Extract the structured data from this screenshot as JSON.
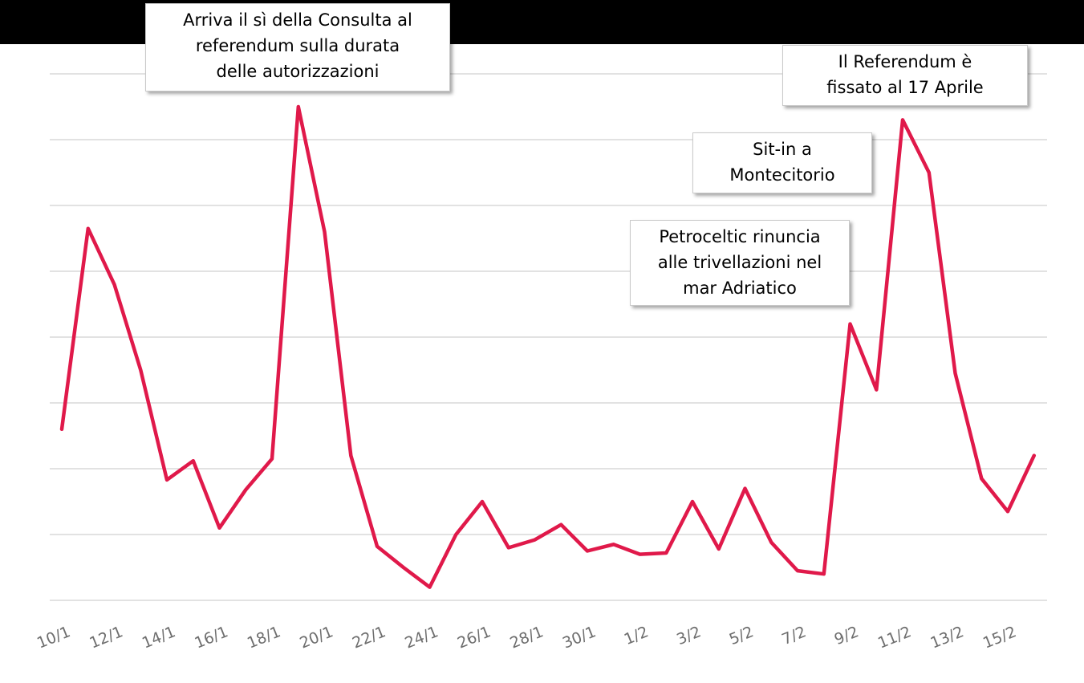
{
  "chart_data": {
    "type": "line",
    "title": "",
    "xlabel": "",
    "ylabel": "",
    "grid": true,
    "line_color": "#e0194a",
    "ylim": [
      0,
      8
    ],
    "x": [
      "10/1",
      "11/1",
      "12/1",
      "13/1",
      "14/1",
      "15/1",
      "16/1",
      "17/1",
      "18/1",
      "19/1",
      "20/1",
      "21/1",
      "22/1",
      "23/1",
      "24/1",
      "25/1",
      "26/1",
      "27/1",
      "28/1",
      "29/1",
      "30/1",
      "31/1",
      "1/2",
      "2/2",
      "3/2",
      "4/2",
      "5/2",
      "6/2",
      "7/2",
      "8/2",
      "9/2",
      "10/2",
      "11/2",
      "12/2",
      "13/2",
      "14/2",
      "15/2",
      "16/2"
    ],
    "tick_labels": [
      "10/1",
      "12/1",
      "14/1",
      "16/1",
      "18/1",
      "20/1",
      "22/1",
      "24/1",
      "26/1",
      "28/1",
      "30/1",
      "1/2",
      "3/2",
      "5/2",
      "7/2",
      "9/2",
      "11/2",
      "13/2",
      "15/2"
    ],
    "values": [
      2.6,
      5.65,
      4.8,
      3.5,
      1.83,
      2.12,
      1.1,
      1.68,
      2.15,
      7.5,
      5.6,
      2.2,
      0.82,
      0.5,
      0.2,
      1.0,
      1.5,
      0.8,
      0.92,
      1.15,
      0.75,
      0.85,
      0.7,
      0.72,
      1.5,
      0.78,
      1.7,
      0.88,
      0.45,
      0.4,
      4.2,
      3.2,
      7.3,
      6.5,
      3.45,
      1.85,
      1.35,
      2.2
    ],
    "annotations": [
      {
        "lines": [
          "Arriva il sì della Consulta al",
          "referendum sulla durata",
          "delle autorizzazioni"
        ]
      },
      {
        "lines": [
          "Il Referendum è",
          "fissato al 17 Aprile"
        ]
      },
      {
        "lines": [
          "Sit-in a",
          "Montecitorio"
        ]
      },
      {
        "lines": [
          "Petroceltic rinuncia",
          "alle trivellazioni nel",
          "mar Adriatico"
        ]
      }
    ]
  }
}
